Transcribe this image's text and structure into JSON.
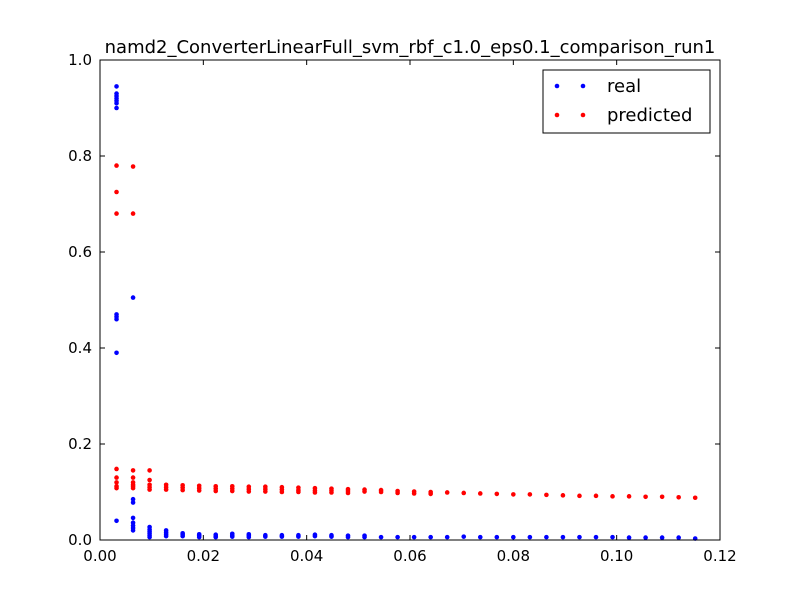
{
  "chart_data": {
    "type": "scatter",
    "title": "namd2_ConverterLinearFull_svm_rbf_c1.0_eps0.1_comparison_run1",
    "xlabel": "",
    "ylabel": "",
    "xlim": [
      0.0,
      0.12
    ],
    "ylim": [
      0.0,
      1.0
    ],
    "x_ticks": [
      "0.00",
      "0.02",
      "0.04",
      "0.06",
      "0.08",
      "0.10",
      "0.12"
    ],
    "y_ticks": [
      "0.0",
      "0.2",
      "0.4",
      "0.6",
      "0.8",
      "1.0"
    ],
    "grid": false,
    "legend_position": "top-right",
    "series": [
      {
        "name": "real",
        "color": "#0000ff",
        "points": [
          [
            0.0032,
            0.945
          ],
          [
            0.0032,
            0.93
          ],
          [
            0.0032,
            0.925
          ],
          [
            0.0032,
            0.92
          ],
          [
            0.0032,
            0.915
          ],
          [
            0.0032,
            0.91
          ],
          [
            0.0032,
            0.9
          ],
          [
            0.0032,
            0.47
          ],
          [
            0.0032,
            0.465
          ],
          [
            0.0032,
            0.46
          ],
          [
            0.0032,
            0.39
          ],
          [
            0.0032,
            0.04
          ],
          [
            0.0064,
            0.505
          ],
          [
            0.0064,
            0.085
          ],
          [
            0.0064,
            0.078
          ],
          [
            0.0064,
            0.046
          ],
          [
            0.0064,
            0.036
          ],
          [
            0.0064,
            0.03
          ],
          [
            0.0064,
            0.025
          ],
          [
            0.0064,
            0.02
          ],
          [
            0.0096,
            0.027
          ],
          [
            0.0096,
            0.022
          ],
          [
            0.0096,
            0.018
          ],
          [
            0.0096,
            0.014
          ],
          [
            0.0096,
            0.01
          ],
          [
            0.0096,
            0.006
          ],
          [
            0.0128,
            0.02
          ],
          [
            0.0128,
            0.016
          ],
          [
            0.0128,
            0.012
          ],
          [
            0.0128,
            0.008
          ],
          [
            0.016,
            0.014
          ],
          [
            0.016,
            0.011
          ],
          [
            0.016,
            0.008
          ],
          [
            0.0192,
            0.012
          ],
          [
            0.0192,
            0.009
          ],
          [
            0.0192,
            0.006
          ],
          [
            0.0224,
            0.011
          ],
          [
            0.0224,
            0.008
          ],
          [
            0.0224,
            0.006
          ],
          [
            0.0256,
            0.013
          ],
          [
            0.0256,
            0.01
          ],
          [
            0.0256,
            0.007
          ],
          [
            0.0288,
            0.012
          ],
          [
            0.0288,
            0.009
          ],
          [
            0.0288,
            0.006
          ],
          [
            0.032,
            0.01
          ],
          [
            0.032,
            0.007
          ],
          [
            0.0352,
            0.01
          ],
          [
            0.0352,
            0.007
          ],
          [
            0.0384,
            0.01
          ],
          [
            0.0384,
            0.007
          ],
          [
            0.0416,
            0.011
          ],
          [
            0.0416,
            0.008
          ],
          [
            0.0448,
            0.01
          ],
          [
            0.0448,
            0.007
          ],
          [
            0.048,
            0.009
          ],
          [
            0.048,
            0.006
          ],
          [
            0.0512,
            0.009
          ],
          [
            0.0512,
            0.006
          ],
          [
            0.0544,
            0.006
          ],
          [
            0.0576,
            0.006
          ],
          [
            0.0608,
            0.006
          ],
          [
            0.064,
            0.006
          ],
          [
            0.0672,
            0.006
          ],
          [
            0.0704,
            0.007
          ],
          [
            0.0736,
            0.006
          ],
          [
            0.0768,
            0.006
          ],
          [
            0.08,
            0.006
          ],
          [
            0.0832,
            0.006
          ],
          [
            0.0864,
            0.006
          ],
          [
            0.0896,
            0.006
          ],
          [
            0.0928,
            0.006
          ],
          [
            0.096,
            0.006
          ],
          [
            0.0992,
            0.006
          ],
          [
            0.1024,
            0.005
          ],
          [
            0.1056,
            0.005
          ],
          [
            0.1088,
            0.005
          ],
          [
            0.112,
            0.005
          ],
          [
            0.1152,
            0.003
          ]
        ]
      },
      {
        "name": "predicted",
        "color": "#ff0000",
        "points": [
          [
            0.0032,
            0.78
          ],
          [
            0.0032,
            0.725
          ],
          [
            0.0032,
            0.68
          ],
          [
            0.0032,
            0.148
          ],
          [
            0.0032,
            0.13
          ],
          [
            0.0032,
            0.12
          ],
          [
            0.0032,
            0.112
          ],
          [
            0.0032,
            0.108
          ],
          [
            0.0064,
            0.778
          ],
          [
            0.0064,
            0.68
          ],
          [
            0.0064,
            0.145
          ],
          [
            0.0064,
            0.13
          ],
          [
            0.0064,
            0.12
          ],
          [
            0.0064,
            0.115
          ],
          [
            0.0064,
            0.112
          ],
          [
            0.0064,
            0.108
          ],
          [
            0.0096,
            0.145
          ],
          [
            0.0096,
            0.125
          ],
          [
            0.0096,
            0.115
          ],
          [
            0.0096,
            0.11
          ],
          [
            0.0096,
            0.105
          ],
          [
            0.0128,
            0.115
          ],
          [
            0.0128,
            0.11
          ],
          [
            0.0128,
            0.105
          ],
          [
            0.016,
            0.114
          ],
          [
            0.016,
            0.109
          ],
          [
            0.016,
            0.104
          ],
          [
            0.0192,
            0.113
          ],
          [
            0.0192,
            0.108
          ],
          [
            0.0192,
            0.103
          ],
          [
            0.0224,
            0.112
          ],
          [
            0.0224,
            0.107
          ],
          [
            0.0224,
            0.102
          ],
          [
            0.0256,
            0.112
          ],
          [
            0.0256,
            0.107
          ],
          [
            0.0256,
            0.102
          ],
          [
            0.0288,
            0.111
          ],
          [
            0.0288,
            0.106
          ],
          [
            0.0288,
            0.101
          ],
          [
            0.032,
            0.111
          ],
          [
            0.032,
            0.106
          ],
          [
            0.032,
            0.101
          ],
          [
            0.0352,
            0.11
          ],
          [
            0.0352,
            0.105
          ],
          [
            0.0352,
            0.1
          ],
          [
            0.0384,
            0.109
          ],
          [
            0.0384,
            0.104
          ],
          [
            0.0384,
            0.1
          ],
          [
            0.0416,
            0.108
          ],
          [
            0.0416,
            0.103
          ],
          [
            0.0416,
            0.099
          ],
          [
            0.0448,
            0.107
          ],
          [
            0.0448,
            0.103
          ],
          [
            0.0448,
            0.099
          ],
          [
            0.048,
            0.106
          ],
          [
            0.048,
            0.102
          ],
          [
            0.048,
            0.098
          ],
          [
            0.0512,
            0.105
          ],
          [
            0.0512,
            0.101
          ],
          [
            0.0544,
            0.104
          ],
          [
            0.0544,
            0.1
          ],
          [
            0.0576,
            0.102
          ],
          [
            0.0576,
            0.098
          ],
          [
            0.0608,
            0.101
          ],
          [
            0.0608,
            0.097
          ],
          [
            0.064,
            0.1
          ],
          [
            0.064,
            0.096
          ],
          [
            0.0672,
            0.099
          ],
          [
            0.0704,
            0.098
          ],
          [
            0.0736,
            0.097
          ],
          [
            0.0768,
            0.096
          ],
          [
            0.08,
            0.095
          ],
          [
            0.0832,
            0.095
          ],
          [
            0.0864,
            0.094
          ],
          [
            0.0896,
            0.093
          ],
          [
            0.0928,
            0.092
          ],
          [
            0.096,
            0.092
          ],
          [
            0.0992,
            0.091
          ],
          [
            0.1024,
            0.091
          ],
          [
            0.1056,
            0.09
          ],
          [
            0.1088,
            0.09
          ],
          [
            0.112,
            0.089
          ],
          [
            0.1152,
            0.088
          ]
        ]
      }
    ]
  }
}
